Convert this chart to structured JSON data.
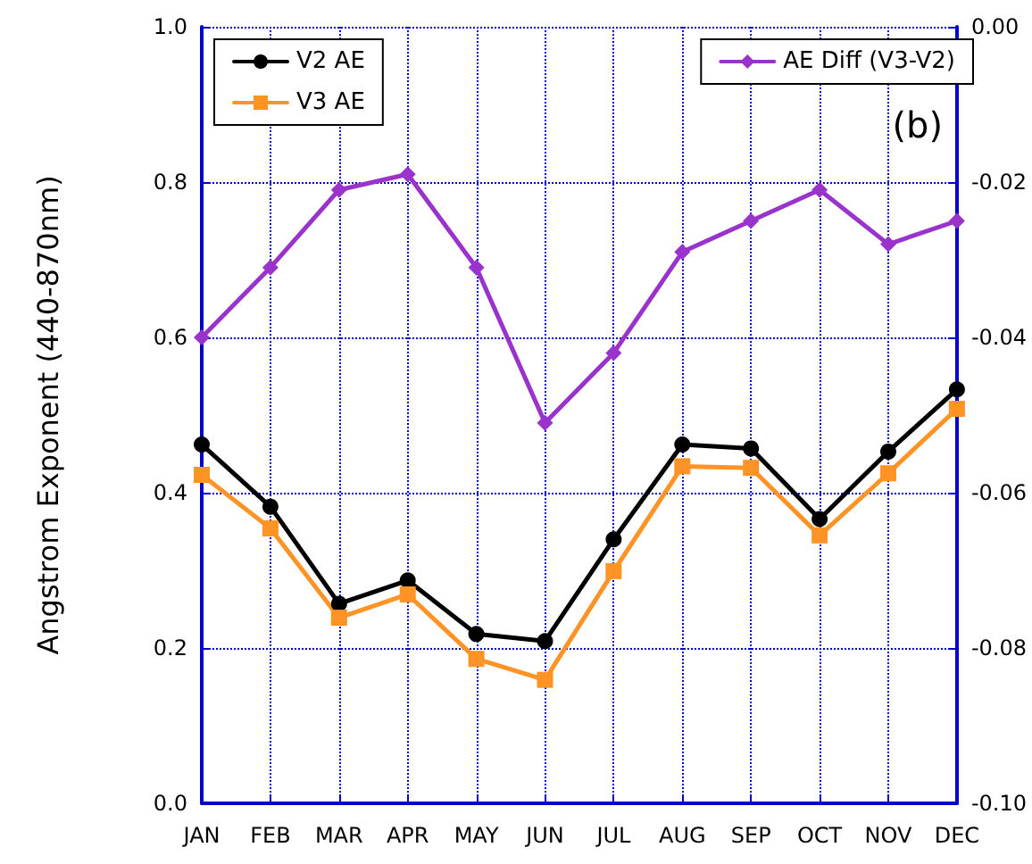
{
  "chart_data": {
    "type": "line",
    "ylabel": "Angstrom Exponent (440-870nm)",
    "categories": [
      "JAN",
      "FEB",
      "MAR",
      "APR",
      "MAY",
      "JUN",
      "JUL",
      "AUG",
      "SEP",
      "OCT",
      "NOV",
      "DEC"
    ],
    "series": [
      {
        "name": "V2 AE",
        "color": "#000000",
        "marker": "circle",
        "values": [
          0.462,
          0.382,
          0.257,
          0.287,
          0.218,
          0.209,
          0.34,
          0.462,
          0.457,
          0.366,
          0.453,
          0.533
        ]
      },
      {
        "name": "V3 AE",
        "color": "#ff9326",
        "marker": "square",
        "values": [
          0.423,
          0.354,
          0.239,
          0.269,
          0.186,
          0.159,
          0.299,
          0.434,
          0.432,
          0.345,
          0.425,
          0.508
        ]
      },
      {
        "name": "AE Diff (V3-V2)",
        "color": "#9933cc",
        "marker": "diamond",
        "axis": "y2",
        "values": [
          -0.04,
          -0.031,
          -0.021,
          -0.019,
          -0.031,
          -0.051,
          -0.042,
          -0.029,
          -0.025,
          -0.021,
          -0.028,
          -0.025
        ]
      }
    ],
    "ylim": [
      0,
      1
    ],
    "yticks": [
      {
        "value": 0,
        "label": "0.0"
      },
      {
        "value": 0.2,
        "label": "0.2"
      },
      {
        "value": 0.4,
        "label": "0.4"
      },
      {
        "value": 0.6,
        "label": "0.6"
      },
      {
        "value": 0.8,
        "label": "0.8"
      },
      {
        "value": 1,
        "label": "1.0"
      }
    ],
    "y2lim": [
      -0.1,
      0
    ],
    "y2ticks": [
      {
        "value": -0.1,
        "label": "-0.10"
      },
      {
        "value": -0.08,
        "label": "-0.08"
      },
      {
        "value": -0.06,
        "label": "-0.06"
      },
      {
        "value": -0.04,
        "label": "-0.04"
      },
      {
        "value": -0.02,
        "label": "-0.02"
      },
      {
        "value": 0,
        "label": "0.00"
      }
    ],
    "annotations": [
      "(b)"
    ],
    "grid": true,
    "legend": "top",
    "line_style": "solid"
  }
}
